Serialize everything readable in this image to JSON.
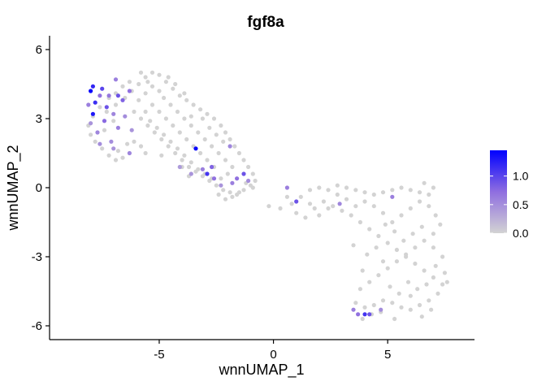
{
  "chart_data": {
    "type": "scatter",
    "title": "fgf8a",
    "xlabel": "wnnUMAP_1",
    "ylabel": "wnnUMAP_2",
    "xlim": [
      -9.8,
      8.8
    ],
    "ylim": [
      -6.6,
      6.6
    ],
    "xticks": [
      -5,
      0,
      5
    ],
    "xtick_labels": [
      "-5",
      "0",
      "5"
    ],
    "yticks": [
      -6,
      -3,
      0,
      3,
      6
    ],
    "ytick_labels": [
      "-6",
      "-3",
      "0",
      "3",
      "6"
    ],
    "grid": false,
    "legend": {
      "placement": "right",
      "type": "colorbar",
      "range": [
        0,
        1.45
      ],
      "ticks": [
        0.0,
        0.5,
        1.0
      ],
      "tick_labels": [
        "0.0",
        "0.5",
        "1.0"
      ],
      "low_color": "#d3d3d3",
      "high_color": "#0000ff"
    },
    "clusters": {
      "grey": [
        [
          -7.6,
          3.5
        ],
        [
          -7.9,
          3.1
        ],
        [
          -8.1,
          2.7
        ],
        [
          -8.0,
          2.3
        ],
        [
          -7.8,
          2.0
        ],
        [
          -7.5,
          1.7
        ],
        [
          -7.2,
          1.4
        ],
        [
          -6.9,
          1.2
        ],
        [
          -6.6,
          1.3
        ],
        [
          -6.8,
          1.6
        ],
        [
          -7.4,
          2.5
        ],
        [
          -7.0,
          2.9
        ],
        [
          -7.3,
          3.3
        ],
        [
          -6.9,
          3.6
        ],
        [
          -6.5,
          3.9
        ],
        [
          -6.2,
          4.2
        ],
        [
          -5.9,
          4.5
        ],
        [
          -5.6,
          4.8
        ],
        [
          -5.3,
          5.0
        ],
        [
          -5.0,
          4.9
        ],
        [
          -4.7,
          4.6
        ],
        [
          -4.4,
          4.3
        ],
        [
          -4.1,
          4.0
        ],
        [
          -3.8,
          3.8
        ],
        [
          -3.5,
          3.6
        ],
        [
          -3.2,
          3.4
        ],
        [
          -2.9,
          3.2
        ],
        [
          -2.6,
          3.0
        ],
        [
          -2.3,
          2.7
        ],
        [
          -2.1,
          2.4
        ],
        [
          -1.9,
          2.1
        ],
        [
          -1.7,
          1.8
        ],
        [
          -1.5,
          1.5
        ],
        [
          -1.3,
          1.2
        ],
        [
          -1.1,
          0.9
        ],
        [
          -0.9,
          0.6
        ],
        [
          -0.8,
          0.3
        ],
        [
          -1.0,
          0.1
        ],
        [
          -1.3,
          -0.1
        ],
        [
          -1.6,
          -0.3
        ],
        [
          -1.9,
          -0.2
        ],
        [
          -2.2,
          -0.1
        ],
        [
          -2.5,
          0.1
        ],
        [
          -2.8,
          0.3
        ],
        [
          -3.1,
          0.5
        ],
        [
          -3.4,
          0.7
        ],
        [
          -3.7,
          0.9
        ],
        [
          -4.0,
          1.2
        ],
        [
          -4.3,
          1.5
        ],
        [
          -4.6,
          1.8
        ],
        [
          -4.9,
          2.1
        ],
        [
          -5.2,
          2.4
        ],
        [
          -5.5,
          2.7
        ],
        [
          -5.8,
          3.0
        ],
        [
          -6.1,
          3.3
        ],
        [
          -5.9,
          3.8
        ],
        [
          -5.6,
          4.1
        ],
        [
          -5.3,
          4.4
        ],
        [
          -5.0,
          4.2
        ],
        [
          -4.8,
          3.9
        ],
        [
          -4.5,
          3.6
        ],
        [
          -4.2,
          3.3
        ],
        [
          -3.9,
          3.0
        ],
        [
          -3.6,
          2.7
        ],
        [
          -3.3,
          2.4
        ],
        [
          -3.0,
          2.1
        ],
        [
          -2.7,
          1.8
        ],
        [
          -2.4,
          1.5
        ],
        [
          -2.1,
          1.2
        ],
        [
          -1.8,
          0.9
        ],
        [
          -2.0,
          0.6
        ],
        [
          -2.3,
          0.4
        ],
        [
          -2.6,
          0.9
        ],
        [
          -2.9,
          1.2
        ],
        [
          -3.2,
          1.5
        ],
        [
          -3.5,
          1.8
        ],
        [
          -3.8,
          2.1
        ],
        [
          -4.1,
          2.4
        ],
        [
          -4.4,
          2.7
        ],
        [
          -4.7,
          3.0
        ],
        [
          -5.0,
          3.3
        ],
        [
          -5.3,
          3.6
        ],
        [
          -5.6,
          3.3
        ],
        [
          -5.4,
          2.9
        ],
        [
          -5.1,
          2.6
        ],
        [
          -4.8,
          2.3
        ],
        [
          -4.5,
          2.0
        ],
        [
          -4.2,
          1.7
        ],
        [
          -3.9,
          1.4
        ],
        [
          -3.6,
          1.1
        ],
        [
          -3.3,
          0.8
        ],
        [
          -3.0,
          0.6
        ],
        [
          -2.7,
          0.4
        ],
        [
          -5.8,
          1.8
        ],
        [
          -6.1,
          2.0
        ],
        [
          -6.4,
          1.9
        ],
        [
          -5.6,
          1.5
        ],
        [
          -4.9,
          1.4
        ],
        [
          -4.0,
          0.9
        ],
        [
          -3.7,
          0.5
        ],
        [
          -2.4,
          -0.3
        ],
        [
          -2.1,
          -0.5
        ],
        [
          -1.8,
          -0.4
        ],
        [
          -1.5,
          -0.2
        ],
        [
          -1.2,
          0.2
        ],
        [
          -0.9,
          0.0
        ],
        [
          -6.3,
          4.6
        ],
        [
          -5.8,
          5.0
        ],
        [
          -5.5,
          4.6
        ],
        [
          -4.6,
          4.8
        ],
        [
          -4.3,
          4.5
        ],
        [
          -3.9,
          4.1
        ],
        [
          -3.6,
          3.1
        ],
        [
          -3.1,
          3.0
        ],
        [
          -2.8,
          2.6
        ],
        [
          -2.5,
          2.3
        ],
        [
          -2.2,
          2.0
        ],
        [
          -6.6,
          4.4
        ],
        [
          -6.9,
          4.1
        ],
        [
          -7.2,
          3.9
        ],
        [
          -0.2,
          -0.8
        ],
        [
          0.3,
          -0.9
        ],
        [
          0.8,
          -0.7
        ],
        [
          1.2,
          -0.4
        ],
        [
          1.6,
          -0.1
        ],
        [
          2.0,
          0.0
        ],
        [
          2.4,
          -0.1
        ],
        [
          2.8,
          0.1
        ],
        [
          3.2,
          0.0
        ],
        [
          3.6,
          -0.1
        ],
        [
          4.0,
          -0.2
        ],
        [
          4.4,
          -0.3
        ],
        [
          4.8,
          -0.2
        ],
        [
          5.2,
          -0.1
        ],
        [
          5.6,
          0.0
        ],
        [
          6.0,
          -0.1
        ],
        [
          6.4,
          -0.2
        ],
        [
          6.8,
          -0.3
        ],
        [
          7.0,
          0.0
        ],
        [
          6.6,
          0.2
        ],
        [
          0.6,
          -0.4
        ],
        [
          1.0,
          -1.1
        ],
        [
          1.4,
          -1.3
        ],
        [
          1.8,
          -0.9
        ],
        [
          2.2,
          -0.6
        ],
        [
          2.6,
          -0.8
        ],
        [
          3.0,
          -1.0
        ],
        [
          3.4,
          -1.2
        ],
        [
          3.8,
          -1.5
        ],
        [
          4.2,
          -1.8
        ],
        [
          4.6,
          -2.1
        ],
        [
          5.0,
          -2.4
        ],
        [
          5.4,
          -2.7
        ],
        [
          5.8,
          -3.0
        ],
        [
          6.2,
          -3.3
        ],
        [
          6.6,
          -3.6
        ],
        [
          7.0,
          -3.9
        ],
        [
          7.4,
          -4.2
        ],
        [
          7.2,
          -4.6
        ],
        [
          6.8,
          -4.9
        ],
        [
          6.4,
          -5.1
        ],
        [
          6.0,
          -5.3
        ],
        [
          5.6,
          -5.2
        ],
        [
          5.2,
          -5.0
        ],
        [
          4.8,
          -4.9
        ],
        [
          4.4,
          -5.1
        ],
        [
          4.0,
          -5.2
        ],
        [
          3.6,
          -5.0
        ],
        [
          3.8,
          -4.4
        ],
        [
          4.2,
          -4.1
        ],
        [
          4.6,
          -3.8
        ],
        [
          5.0,
          -3.5
        ],
        [
          5.4,
          -3.2
        ],
        [
          5.8,
          -2.9
        ],
        [
          6.2,
          -2.6
        ],
        [
          6.6,
          -2.3
        ],
        [
          7.0,
          -2.0
        ],
        [
          7.3,
          -1.6
        ],
        [
          7.1,
          -1.2
        ],
        [
          6.8,
          -0.8
        ],
        [
          6.4,
          -0.6
        ],
        [
          6.0,
          -0.9
        ],
        [
          5.6,
          -1.2
        ],
        [
          5.2,
          -1.5
        ],
        [
          4.8,
          -1.1
        ],
        [
          4.4,
          -0.8
        ],
        [
          4.0,
          -0.6
        ],
        [
          3.6,
          -0.8
        ],
        [
          3.2,
          -0.5
        ],
        [
          2.8,
          -0.3
        ],
        [
          2.4,
          -0.9
        ],
        [
          2.0,
          -1.2
        ],
        [
          1.6,
          -0.7
        ],
        [
          5.9,
          -4.1
        ],
        [
          6.3,
          -4.4
        ],
        [
          6.7,
          -4.2
        ],
        [
          7.1,
          -3.4
        ],
        [
          7.5,
          -3.7
        ],
        [
          7.6,
          -4.1
        ],
        [
          7.4,
          -3.0
        ],
        [
          7.0,
          -2.6
        ],
        [
          6.5,
          -1.7
        ],
        [
          6.1,
          -2.0
        ],
        [
          5.7,
          -2.3
        ],
        [
          5.3,
          -1.9
        ],
        [
          4.9,
          -1.6
        ],
        [
          4.5,
          -2.6
        ],
        [
          4.1,
          -2.9
        ],
        [
          5.1,
          -4.3
        ],
        [
          5.5,
          -4.6
        ],
        [
          6.9,
          -5.3
        ],
        [
          6.5,
          -5.6
        ],
        [
          4.3,
          -5.5
        ],
        [
          3.9,
          -5.7
        ],
        [
          4.7,
          -5.4
        ],
        [
          5.3,
          -5.7
        ],
        [
          6.0,
          -4.7
        ],
        [
          4.8,
          -3.2
        ],
        [
          3.9,
          -3.6
        ],
        [
          3.5,
          -2.5
        ]
      ],
      "expressed": [
        {
          "x": -8.0,
          "y": 4.2,
          "v": 1.4
        },
        {
          "x": -7.8,
          "y": 3.7,
          "v": 1.15
        },
        {
          "x": -7.9,
          "y": 3.2,
          "v": 1.3
        },
        {
          "x": -7.5,
          "y": 4.3,
          "v": 1.0
        },
        {
          "x": -7.3,
          "y": 3.5,
          "v": 0.9
        },
        {
          "x": -7.6,
          "y": 4.0,
          "v": 0.7
        },
        {
          "x": -7.9,
          "y": 4.4,
          "v": 1.2
        },
        {
          "x": -7.2,
          "y": 4.0,
          "v": 0.65
        },
        {
          "x": -7.0,
          "y": 3.2,
          "v": 0.55
        },
        {
          "x": -8.1,
          "y": 3.6,
          "v": 0.6
        },
        {
          "x": -7.4,
          "y": 2.9,
          "v": 0.75
        },
        {
          "x": -7.7,
          "y": 2.4,
          "v": 0.55
        },
        {
          "x": -7.1,
          "y": 2.0,
          "v": 0.5
        },
        {
          "x": -6.8,
          "y": 2.6,
          "v": 0.6
        },
        {
          "x": -6.6,
          "y": 3.8,
          "v": 0.8
        },
        {
          "x": -6.9,
          "y": 4.7,
          "v": 0.6
        },
        {
          "x": -6.3,
          "y": 4.2,
          "v": 0.7
        },
        {
          "x": -6.5,
          "y": 3.1,
          "v": 0.5
        },
        {
          "x": -6.2,
          "y": 2.5,
          "v": 0.45
        },
        {
          "x": -6.3,
          "y": 1.5,
          "v": 0.55
        },
        {
          "x": -7.0,
          "y": 1.7,
          "v": 0.45
        },
        {
          "x": -7.6,
          "y": 1.9,
          "v": 0.5
        },
        {
          "x": -8.0,
          "y": 2.8,
          "v": 0.45
        },
        {
          "x": -6.8,
          "y": 4.0,
          "v": 0.9
        },
        {
          "x": -3.4,
          "y": 1.7,
          "v": 1.4
        },
        {
          "x": -2.7,
          "y": 0.9,
          "v": 0.8
        },
        {
          "x": -2.9,
          "y": 0.6,
          "v": 1.1
        },
        {
          "x": -2.6,
          "y": 0.4,
          "v": 0.7
        },
        {
          "x": -3.1,
          "y": 0.8,
          "v": 0.6
        },
        {
          "x": -1.9,
          "y": 1.8,
          "v": 0.55
        },
        {
          "x": -1.6,
          "y": 0.4,
          "v": 0.7
        },
        {
          "x": -1.8,
          "y": 0.2,
          "v": 0.6
        },
        {
          "x": -1.3,
          "y": 0.6,
          "v": 0.9
        },
        {
          "x": -1.1,
          "y": 0.3,
          "v": 0.5
        },
        {
          "x": -2.3,
          "y": 0.1,
          "v": 0.45
        },
        {
          "x": -3.6,
          "y": 0.6,
          "v": 0.45
        },
        {
          "x": -4.1,
          "y": 0.9,
          "v": 0.4
        },
        {
          "x": 0.6,
          "y": 0.0,
          "v": 0.6
        },
        {
          "x": 1.0,
          "y": -0.6,
          "v": 0.9
        },
        {
          "x": 2.9,
          "y": -0.7,
          "v": 0.55
        },
        {
          "x": 5.2,
          "y": -0.4,
          "v": 0.6
        },
        {
          "x": 4.0,
          "y": -5.5,
          "v": 1.1
        },
        {
          "x": 4.2,
          "y": -5.5,
          "v": 0.9
        },
        {
          "x": 3.7,
          "y": -5.5,
          "v": 0.7
        },
        {
          "x": 3.5,
          "y": -5.3,
          "v": 0.6
        },
        {
          "x": 4.7,
          "y": -5.3,
          "v": 0.5
        }
      ]
    }
  }
}
